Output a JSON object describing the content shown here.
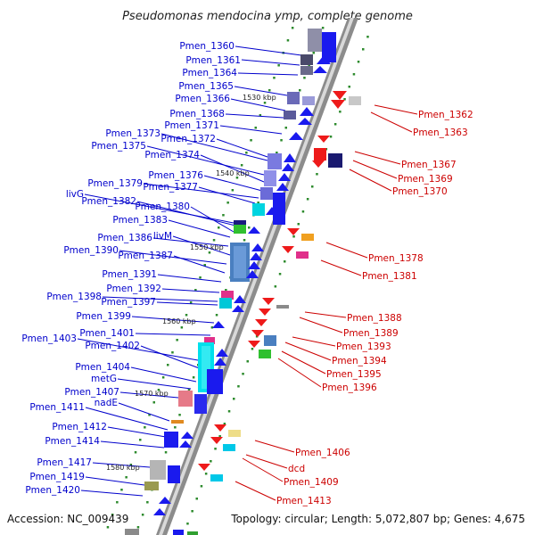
{
  "title": "Pseudomonas mendocina ymp, complete genome",
  "footer": {
    "accession": "Accession: NC_009439",
    "topology": "Topology: circular; Length: 5,072,807 bp; Genes: 4,675"
  },
  "scale_labels": [
    "1530 kbp",
    "1540 kbp",
    "1550 kbp",
    "1560 kbp",
    "1570 kbp",
    "1580 kbp"
  ],
  "colors": {
    "plus_strand_label": "#0000cc",
    "minus_strand_label": "#cc0000",
    "genome_backbone": "#8c8c8c",
    "tick": "#2e8b2e"
  },
  "left_genes": [
    "Pmen_1360",
    "Pmen_1361",
    "Pmen_1364",
    "Pmen_1365",
    "Pmen_1366",
    "Pmen_1368",
    "Pmen_1371",
    "Pmen_1373",
    "Pmen_1372",
    "Pmen_1375",
    "Pmen_1374",
    "Pmen_1376",
    "Pmen_1379",
    "Pmen_1377",
    "livG",
    "Pmen_1382",
    "Pmen_1380",
    "Pmen_1383",
    "Pmen_1386",
    "livM",
    "Pmen_1390",
    "Pmen_1387",
    "Pmen_1391",
    "Pmen_1392",
    "Pmen_1398",
    "Pmen_1397",
    "Pmen_1399",
    "Pmen_1401",
    "Pmen_1403",
    "Pmen_1402",
    "Pmen_1404",
    "metG",
    "Pmen_1407",
    "nadE",
    "Pmen_1411",
    "Pmen_1412",
    "Pmen_1414",
    "Pmen_1417",
    "Pmen_1419",
    "Pmen_1420"
  ],
  "right_genes": [
    "Pmen_1362",
    "Pmen_1363",
    "Pmen_1367",
    "Pmen_1369",
    "Pmen_1370",
    "Pmen_1378",
    "Pmen_1381",
    "Pmen_1388",
    "Pmen_1389",
    "Pmen_1393",
    "Pmen_1394",
    "Pmen_1395",
    "Pmen_1396",
    "Pmen_1406",
    "dcd",
    "Pmen_1409",
    "Pmen_1413"
  ]
}
